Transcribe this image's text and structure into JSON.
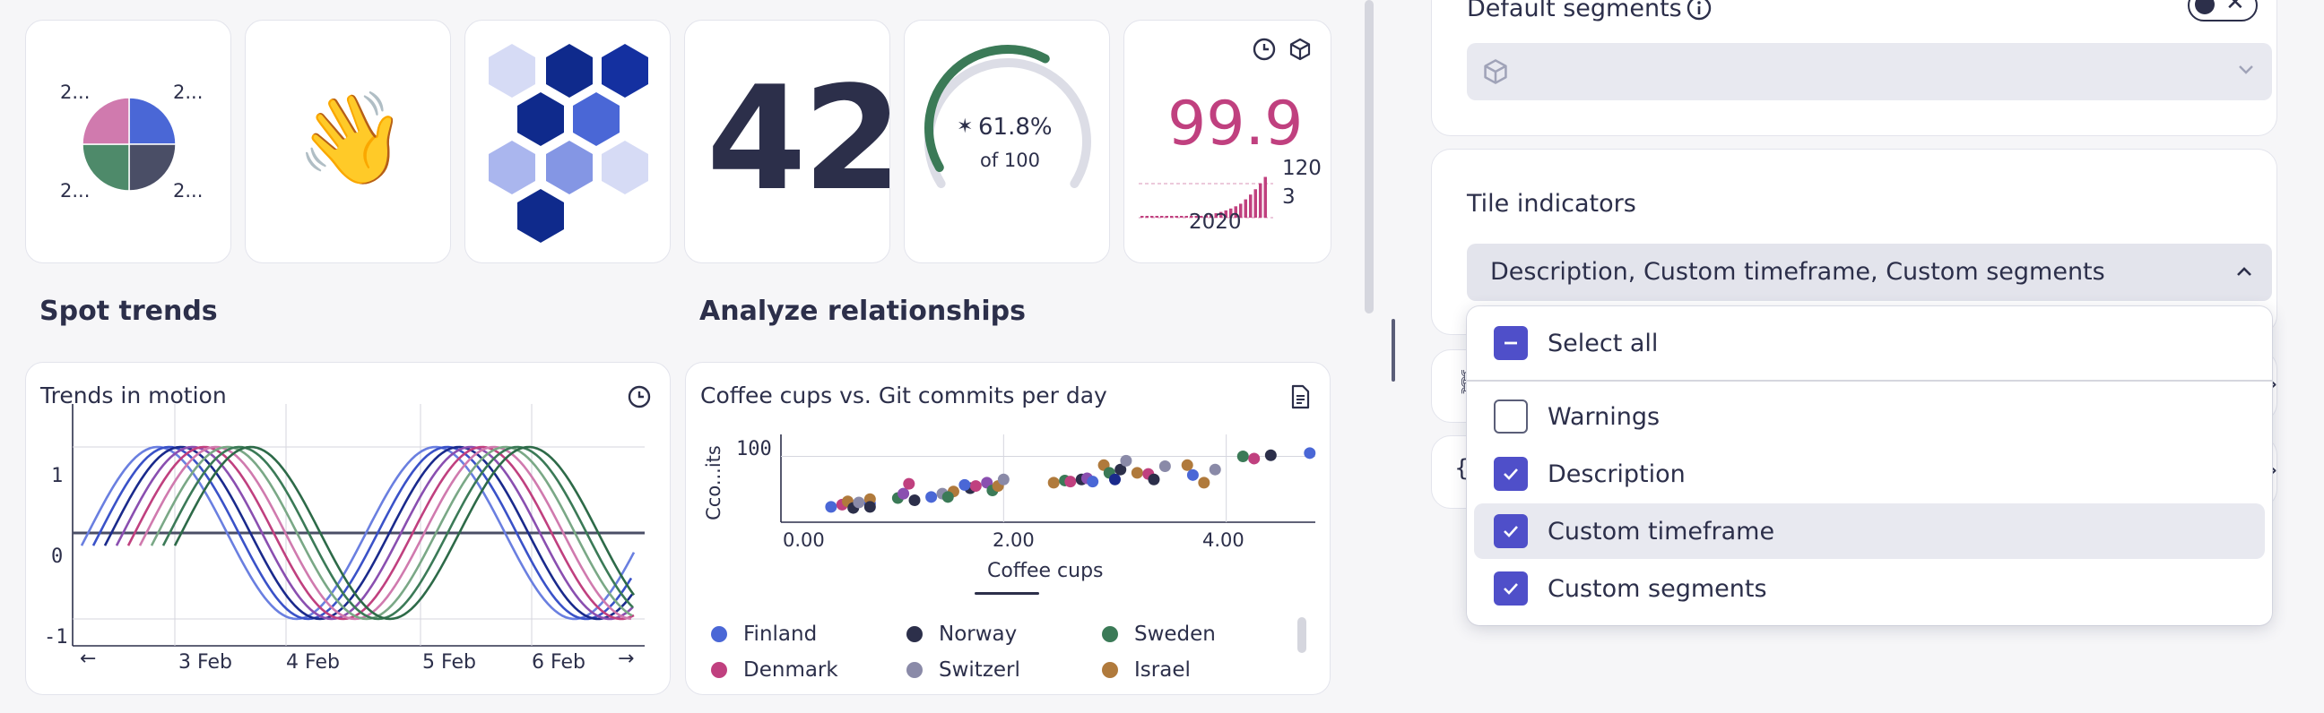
{
  "colors": {
    "accent": "#4f4fc9",
    "pink": "#c0407f",
    "green": "#3b7a57",
    "navy": "#1a2a8c"
  },
  "tiles": {
    "pie": {
      "labels": [
        "2...",
        "2...",
        "2...",
        "2..."
      ],
      "slices": [
        {
          "color": "#4a67d6",
          "value": 25
        },
        {
          "color": "#4a4e66",
          "value": 25
        },
        {
          "color": "#4e8a6a",
          "value": 25
        },
        {
          "color": "#d07aae",
          "value": 25
        }
      ]
    },
    "emoji": {
      "glyph": "👋"
    },
    "single_value": {
      "value": "42"
    },
    "gauge": {
      "value_text": "61.8%",
      "sub_text": "of 100",
      "value": 61.8,
      "max": 100
    },
    "sparkline": {
      "value": "99.9",
      "max_label": "120",
      "min_label": "3",
      "year_label": "2020",
      "clock_icon": "clock-icon",
      "segment_icon": "cube-icon"
    }
  },
  "sections": {
    "spot_trends": "Spot trends",
    "analyze_relationships": "Analyze relationships"
  },
  "trends_chart": {
    "title": "Trends in motion",
    "clock_icon": "clock-icon",
    "chart_data": {
      "type": "line",
      "y_ticks": [
        "1",
        "0",
        "-1"
      ],
      "x_ticks": [
        "3 Feb",
        "4 Feb",
        "5 Feb",
        "6 Feb"
      ],
      "ylim": [
        -1,
        1
      ],
      "series_colors": [
        "#6a7fe0",
        "#3a52c8",
        "#1a2a8c",
        "#8a4fb0",
        "#c0407f",
        "#d07aae",
        "#7aa886",
        "#3b7a57",
        "#2d6a48"
      ],
      "phase_shift_days": 0.1,
      "period_days": 2
    }
  },
  "scatter_chart": {
    "title": "Coffee cups vs. Git commits per day",
    "doc_icon": "document-icon",
    "chart_data": {
      "type": "scatter",
      "xlabel": "Coffee cups",
      "ylabel": "Cco...its",
      "x_ticks": [
        "0.00",
        "2.00",
        "4.00"
      ],
      "y_ticks": [
        "100"
      ],
      "xlim": [
        0,
        4.8
      ],
      "ylim": [
        40,
        120
      ],
      "points": [
        {
          "x": 0.45,
          "y": 54,
          "c": "#4a67d6"
        },
        {
          "x": 0.55,
          "y": 56,
          "c": "#c0407f"
        },
        {
          "x": 0.6,
          "y": 59,
          "c": "#b07a3c"
        },
        {
          "x": 0.65,
          "y": 53,
          "c": "#2c2f4a"
        },
        {
          "x": 0.7,
          "y": 58,
          "c": "#8a8aa8"
        },
        {
          "x": 0.8,
          "y": 57,
          "c": "#4a67d6"
        },
        {
          "x": 0.8,
          "y": 61,
          "c": "#b07a3c"
        },
        {
          "x": 0.8,
          "y": 54,
          "c": "#2c2f4a"
        },
        {
          "x": 1.05,
          "y": 62,
          "c": "#3b7a57"
        },
        {
          "x": 1.1,
          "y": 66,
          "c": "#8a4fb0"
        },
        {
          "x": 1.2,
          "y": 60,
          "c": "#2c2f4a"
        },
        {
          "x": 1.15,
          "y": 75,
          "c": "#c0407f"
        },
        {
          "x": 1.35,
          "y": 63,
          "c": "#4a67d6"
        },
        {
          "x": 1.45,
          "y": 66,
          "c": "#8a8aa8"
        },
        {
          "x": 1.55,
          "y": 68,
          "c": "#b07a3c"
        },
        {
          "x": 1.5,
          "y": 63,
          "c": "#3b7a57"
        },
        {
          "x": 1.7,
          "y": 71,
          "c": "#2c2f4a"
        },
        {
          "x": 1.75,
          "y": 73,
          "c": "#c0407f"
        },
        {
          "x": 1.65,
          "y": 74,
          "c": "#4a67d6"
        },
        {
          "x": 1.85,
          "y": 76,
          "c": "#8a4fb0"
        },
        {
          "x": 1.9,
          "y": 69,
          "c": "#3b7a57"
        },
        {
          "x": 1.95,
          "y": 73,
          "c": "#b07a3c"
        },
        {
          "x": 2.0,
          "y": 79,
          "c": "#8a8aa8"
        },
        {
          "x": 2.45,
          "y": 76,
          "c": "#b07a3c"
        },
        {
          "x": 2.55,
          "y": 78,
          "c": "#3b7a57"
        },
        {
          "x": 2.6,
          "y": 77,
          "c": "#c0407f"
        },
        {
          "x": 2.7,
          "y": 79,
          "c": "#2c2f4a"
        },
        {
          "x": 2.75,
          "y": 80,
          "c": "#8a4fb0"
        },
        {
          "x": 2.8,
          "y": 77,
          "c": "#4a67d6"
        },
        {
          "x": 2.9,
          "y": 92,
          "c": "#b07a3c"
        },
        {
          "x": 2.95,
          "y": 85,
          "c": "#3b7a57"
        },
        {
          "x": 3.0,
          "y": 79,
          "c": "#1a2a8c"
        },
        {
          "x": 3.05,
          "y": 88,
          "c": "#2c2f4a"
        },
        {
          "x": 3.1,
          "y": 96,
          "c": "#8a8aa8"
        },
        {
          "x": 3.2,
          "y": 85,
          "c": "#b07a3c"
        },
        {
          "x": 3.3,
          "y": 84,
          "c": "#c0407f"
        },
        {
          "x": 3.35,
          "y": 79,
          "c": "#2c2f4a"
        },
        {
          "x": 3.45,
          "y": 91,
          "c": "#8a8aa8"
        },
        {
          "x": 3.65,
          "y": 92,
          "c": "#b07a3c"
        },
        {
          "x": 3.7,
          "y": 83,
          "c": "#4a67d6"
        },
        {
          "x": 3.8,
          "y": 76,
          "c": "#b07a3c"
        },
        {
          "x": 3.9,
          "y": 88,
          "c": "#8a8aa8"
        },
        {
          "x": 4.15,
          "y": 100,
          "c": "#3b7a57"
        },
        {
          "x": 4.25,
          "y": 98,
          "c": "#c0407f"
        },
        {
          "x": 4.4,
          "y": 101,
          "c": "#2c2f4a"
        },
        {
          "x": 4.75,
          "y": 103,
          "c": "#4a67d6"
        }
      ]
    },
    "legend": [
      {
        "name": "Finland",
        "color": "#4a67d6"
      },
      {
        "name": "Norway",
        "color": "#2c2f4a"
      },
      {
        "name": "Sweden",
        "color": "#3b7a57"
      },
      {
        "name": "Denmark",
        "color": "#c0407f"
      },
      {
        "name": "Switzerl",
        "color": "#8a8aa8"
      },
      {
        "name": "Israel",
        "color": "#b07a3c"
      }
    ]
  },
  "right_panel": {
    "default_segments": {
      "label": "Default segments",
      "info_icon": "info-icon",
      "select_icon": "cube-icon"
    },
    "tile_indicators": {
      "label": "Tile indicators",
      "value": "Description, Custom timeframe, Custom segments"
    },
    "menu": {
      "select_all": "Select all",
      "items": [
        {
          "label": "Warnings",
          "checked": false
        },
        {
          "label": "Description",
          "checked": true
        },
        {
          "label": "Custom timeframe",
          "checked": true
        },
        {
          "label": "Custom segments",
          "checked": true
        }
      ]
    }
  }
}
